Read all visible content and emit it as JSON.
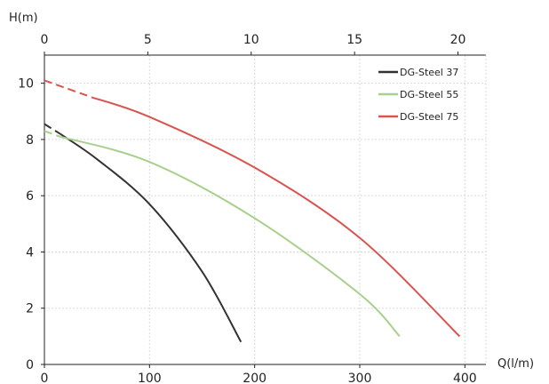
{
  "chart_data": {
    "type": "line",
    "ylabel": "H(m)",
    "xlabel": "Q(l/m)",
    "xlim": [
      0,
      420
    ],
    "ylim": [
      0,
      11
    ],
    "x_ticks": [
      0,
      100,
      200,
      300,
      400
    ],
    "y_ticks": [
      0,
      2,
      4,
      6,
      8,
      10
    ],
    "secondary_x_ticks": [
      0,
      5,
      10,
      15,
      20
    ],
    "secondary_x_scale": 19.67,
    "grid": true,
    "legend_position": "top-right",
    "series": [
      {
        "name": "DG-Steel 37",
        "color": "#333333",
        "dashed_to_x": 15,
        "x": [
          0,
          15,
          50,
          100,
          150,
          187
        ],
        "y": [
          8.55,
          8.2,
          7.3,
          5.7,
          3.3,
          0.8
        ]
      },
      {
        "name": "DG-Steel 55",
        "color": "#a8d08d",
        "dashed_to_x": 15,
        "x": [
          0,
          15,
          100,
          200,
          300,
          338
        ],
        "y": [
          8.3,
          8.1,
          7.2,
          5.2,
          2.5,
          1.0
        ]
      },
      {
        "name": "DG-Steel 75",
        "color": "#d9534f",
        "dashed_to_x": 45,
        "x": [
          0,
          45,
          100,
          200,
          300,
          395
        ],
        "y": [
          10.1,
          9.5,
          8.8,
          7.0,
          4.5,
          1.0
        ]
      }
    ]
  }
}
